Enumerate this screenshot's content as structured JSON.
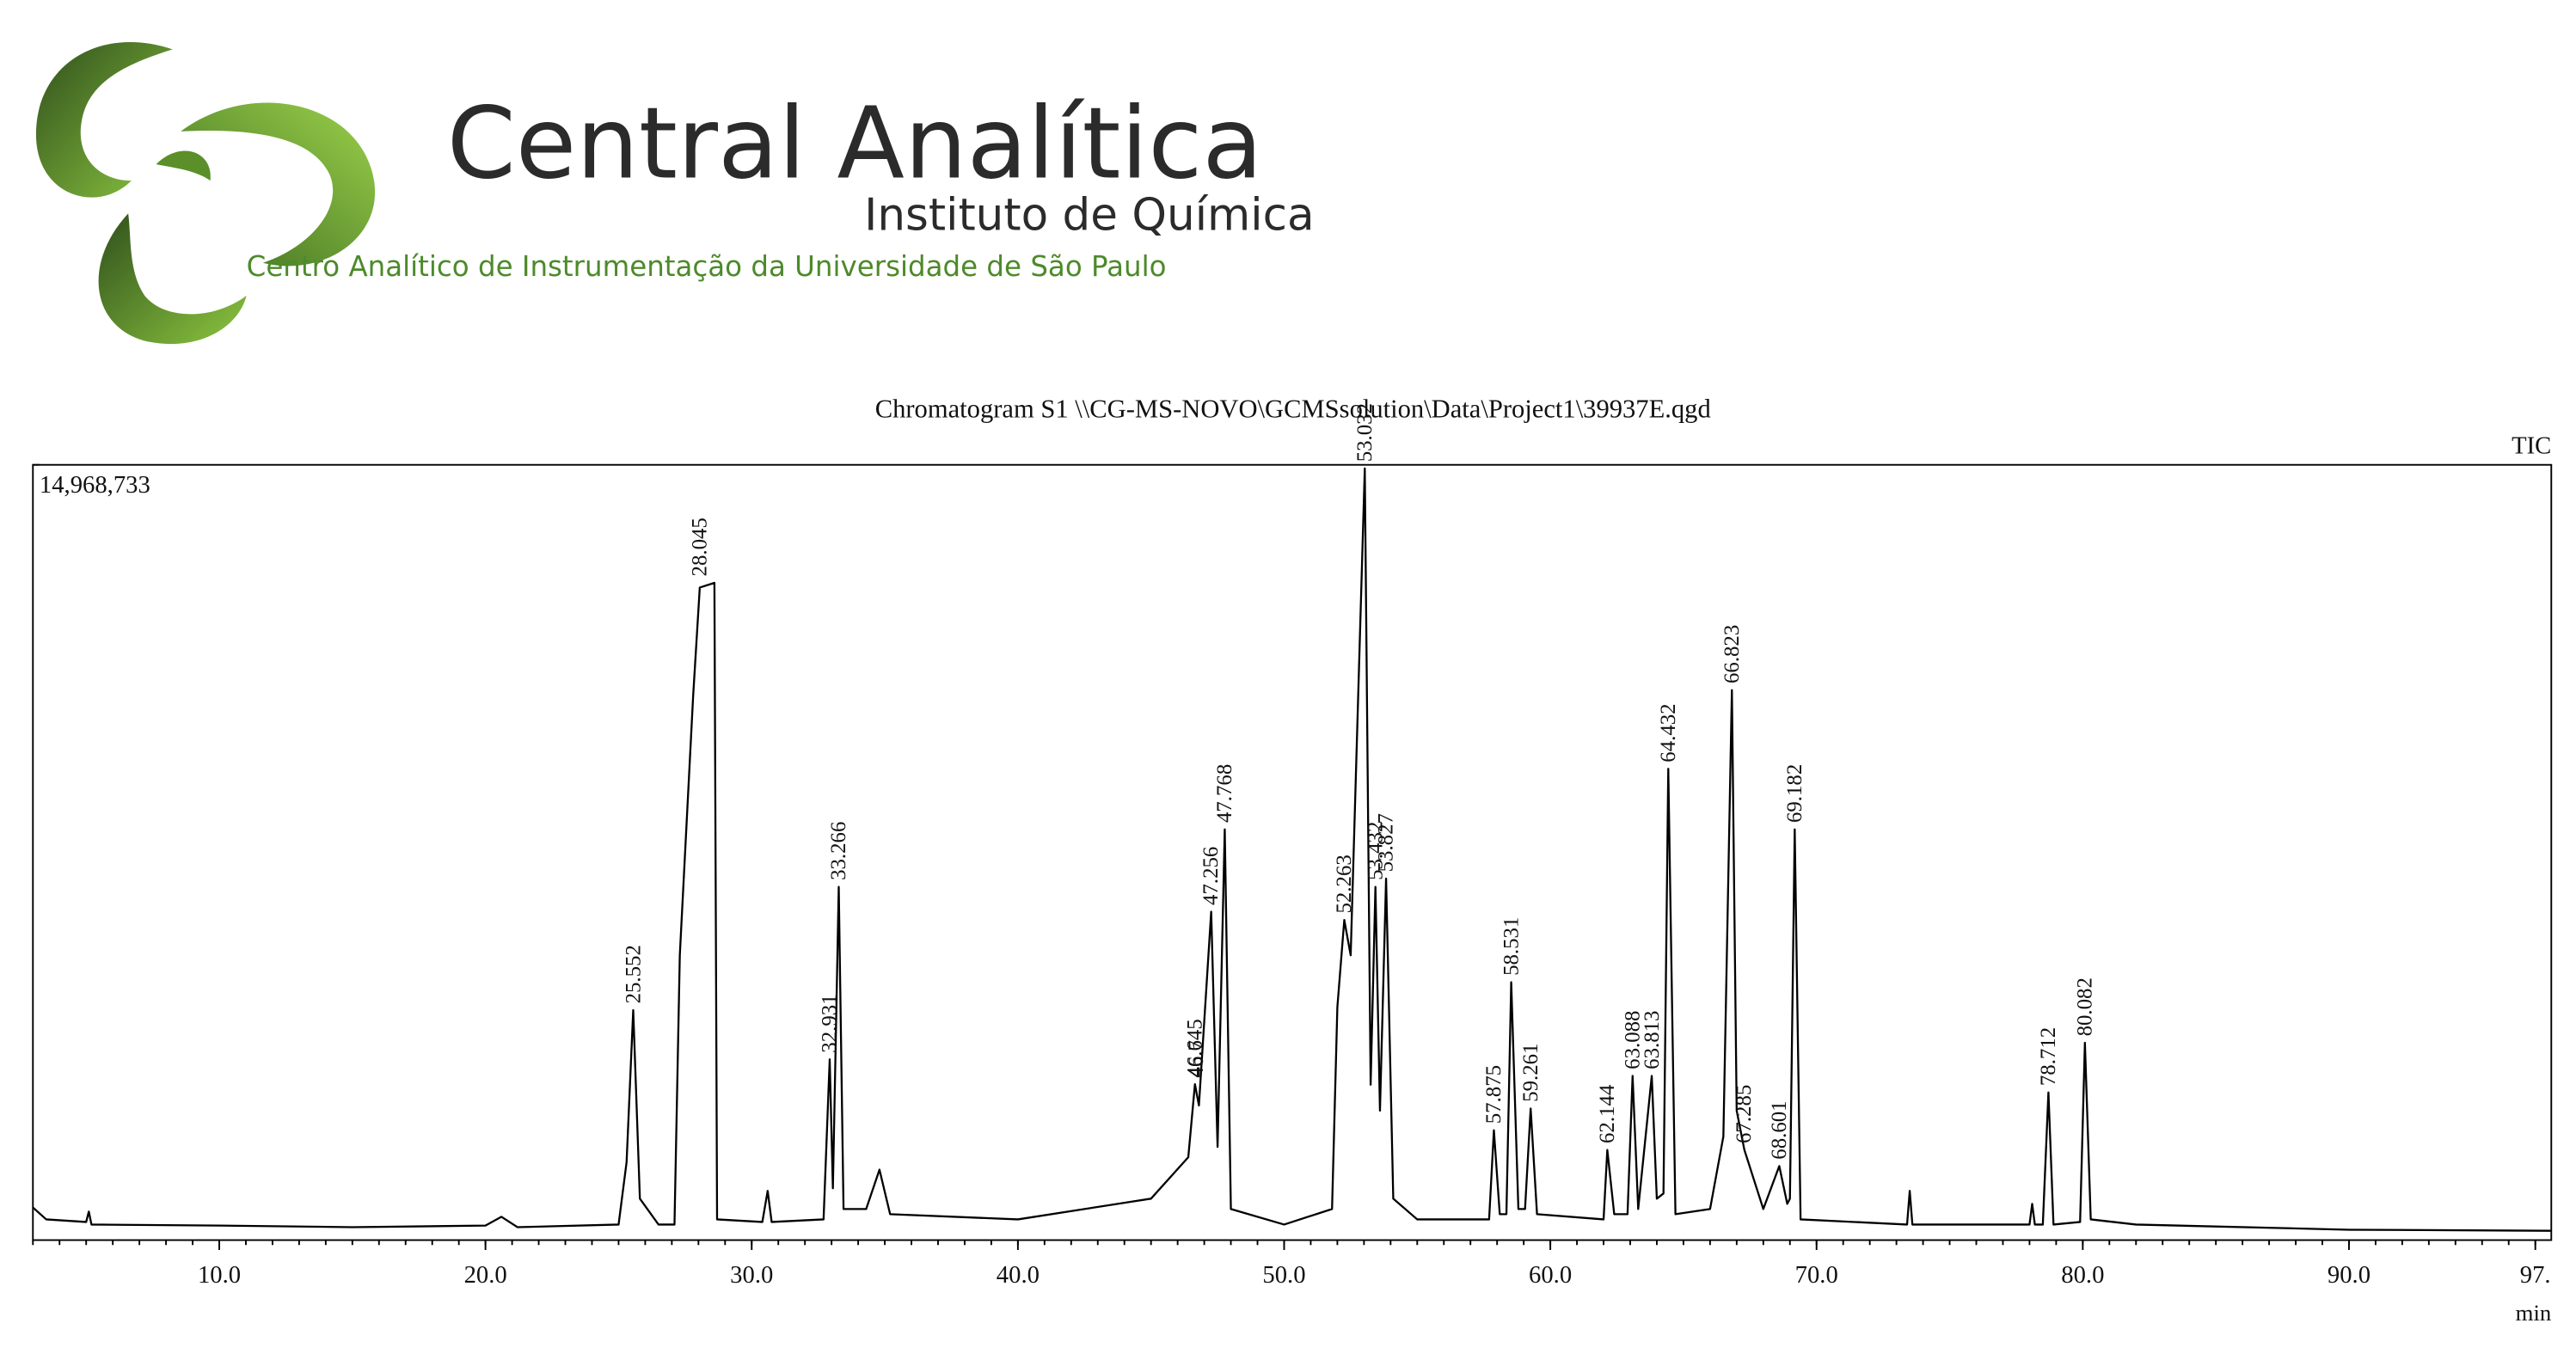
{
  "header": {
    "title": "Central Analítica",
    "subtitle": "Instituto de Química",
    "tagline": "Centro Analítico de Instrumentação da Universidade de São Paulo"
  },
  "chart_data": {
    "type": "line",
    "title": "Chromatogram S1 \\\\CG-MS-NOVO\\GCMSsolution\\Data\\Project1\\39937E.qgd",
    "y_label": "TIC",
    "x_label": "min",
    "color": "#000000",
    "xlim": [
      3.0,
      97.6
    ],
    "ylim": [
      0,
      14968733
    ],
    "xticks": [
      {
        "value": 10,
        "label": "10.0"
      },
      {
        "value": 20,
        "label": "20.0"
      },
      {
        "value": 30,
        "label": "30.0"
      },
      {
        "value": 40,
        "label": "40.0"
      },
      {
        "value": 50,
        "label": "50.0"
      },
      {
        "value": 60,
        "label": "60.0"
      },
      {
        "value": 70,
        "label": "70.0"
      },
      {
        "value": 80,
        "label": "80.0"
      },
      {
        "value": 90,
        "label": "90.0"
      },
      {
        "value": 97,
        "label": "97."
      }
    ],
    "yticks": [
      {
        "value": 14968733,
        "label": "14,968,733"
      }
    ],
    "series": [
      {
        "name": "TIC",
        "x": [
          3.0,
          3.5,
          5.0,
          5.1,
          5.2,
          10,
          15,
          20,
          20.6,
          21.2,
          25.0,
          25.3,
          25.55,
          25.8,
          26.5,
          27.1,
          27.3,
          27.8,
          28.05,
          28.6,
          28.7,
          30.4,
          30.6,
          30.75,
          32.7,
          32.93,
          33.05,
          33.27,
          33.45,
          34.3,
          34.8,
          35.2,
          40,
          45,
          46.4,
          46.65,
          46.8,
          47.26,
          47.5,
          47.77,
          48.0,
          50,
          51.8,
          52.0,
          52.26,
          52.5,
          53.03,
          53.25,
          53.43,
          53.6,
          53.83,
          54.1,
          55,
          57.7,
          57.88,
          58.1,
          58.35,
          58.53,
          58.8,
          59.05,
          59.26,
          59.5,
          62.0,
          62.14,
          62.4,
          62.9,
          63.09,
          63.3,
          63.81,
          64.0,
          64.25,
          64.43,
          64.7,
          66.0,
          66.5,
          66.82,
          67.0,
          67.29,
          68.0,
          68.6,
          68.9,
          69.0,
          69.18,
          69.4,
          73.4,
          73.5,
          73.6,
          78.0,
          78.1,
          78.2,
          78.5,
          78.71,
          78.9,
          79.9,
          80.08,
          80.3,
          82,
          90,
          97.6
        ],
        "values": [
          630000,
          400000,
          350000,
          550000,
          300000,
          280000,
          250000,
          280000,
          450000,
          250000,
          300000,
          1500000,
          4440000,
          800000,
          300000,
          300000,
          5500000,
          10500000,
          12600000,
          12690000,
          400000,
          350000,
          950000,
          350000,
          400000,
          3490000,
          1000000,
          6820000,
          600000,
          600000,
          1360000,
          500000,
          400000,
          800000,
          1600000,
          3010000,
          2600000,
          6340000,
          1800000,
          7930000,
          600000,
          300000,
          600000,
          4500000,
          6180000,
          5500000,
          14900000,
          3000000,
          6820000,
          2500000,
          6980000,
          800000,
          400000,
          400000,
          2120000,
          500000,
          500000,
          4980000,
          600000,
          600000,
          2540000,
          500000,
          400000,
          1740000,
          500000,
          500000,
          3170000,
          600000,
          3170000,
          800000,
          900000,
          9100000,
          500000,
          600000,
          2000000,
          10620000,
          2500000,
          1740000,
          600000,
          1430000,
          700000,
          800000,
          7930000,
          400000,
          300000,
          950000,
          300000,
          300000,
          700000,
          300000,
          300000,
          2850000,
          300000,
          350000,
          3810000,
          400000,
          300000,
          200000,
          180000
        ]
      }
    ],
    "peaks": {
      "x": [
        25.552,
        28.045,
        32.931,
        33.266,
        46.645,
        46.7,
        47.256,
        47.768,
        52.263,
        53.032,
        53.432,
        53.827,
        57.875,
        58.531,
        59.261,
        62.144,
        63.088,
        63.813,
        64.432,
        66.823,
        67.285,
        68.601,
        69.182,
        78.712,
        80.082
      ],
      "values": [
        4440000,
        12690000,
        3490000,
        6820000,
        3010000,
        3010000,
        6340000,
        7930000,
        6180000,
        14900000,
        6820000,
        6980000,
        2120000,
        4980000,
        2540000,
        1740000,
        3170000,
        3170000,
        9100000,
        10620000,
        1740000,
        1430000,
        7930000,
        2850000,
        3810000
      ]
    }
  }
}
